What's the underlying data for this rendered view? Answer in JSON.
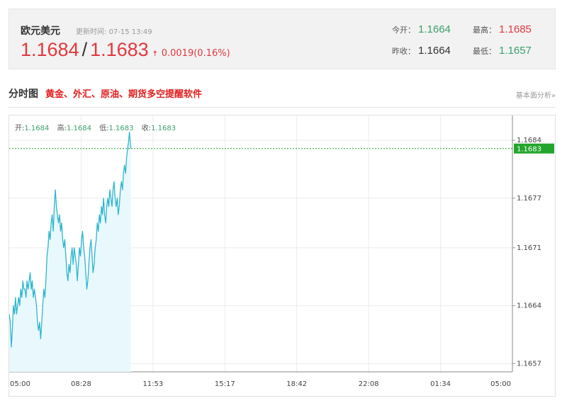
{
  "header": {
    "pair_name": "欧元美元",
    "update_label": "更新时间:",
    "update_time": "07-15 13:49",
    "bid": "1.1684",
    "separator": "/",
    "ask": "1.1683",
    "change": "0.0019(0.16%)",
    "stats": {
      "open_label": "今开：",
      "open_value": "1.1664",
      "high_label": "最高：",
      "high_value": "1.1685",
      "prev_close_label": "昨收：",
      "prev_close_value": "1.1664",
      "low_label": "最低：",
      "low_value": "1.1657"
    }
  },
  "section": {
    "title": "分时图",
    "promo_link": "黄金、外汇、原油、期货多空提醒软件",
    "right_link": "基本面分析»"
  },
  "colors": {
    "up": "#e2383e",
    "down": "#3aa06b",
    "line": "#2cb6cf",
    "fill": "#e9f8fc",
    "current_tag": "#22a52c"
  },
  "chart_data": {
    "type": "area",
    "ohlc": [
      {
        "label": "开:",
        "value": "1.1684"
      },
      {
        "label": "高:",
        "value": "1.1684"
      },
      {
        "label": "低:",
        "value": "1.1683"
      },
      {
        "label": "收:",
        "value": "1.1683"
      }
    ],
    "x_ticks": [
      "05:00",
      "08:28",
      "11:53",
      "15:17",
      "18:42",
      "22:08",
      "01:34",
      "05:00"
    ],
    "y_ticks": [
      "1.1684",
      "1.1677",
      "1.1671",
      "1.1664",
      "1.1657"
    ],
    "ylim": [
      1.1656,
      1.1687
    ],
    "current_price": "1.1683",
    "session_minutes": 1440,
    "series": [
      {
        "values": [
          [
            0,
            1.1663
          ],
          [
            3,
            1.1662
          ],
          [
            6,
            1.1659
          ],
          [
            9,
            1.1661
          ],
          [
            12,
            1.1664
          ],
          [
            15,
            1.1663
          ],
          [
            18,
            1.1665
          ],
          [
            21,
            1.1663
          ],
          [
            24,
            1.1664
          ],
          [
            27,
            1.1665
          ],
          [
            30,
            1.1664
          ],
          [
            33,
            1.1666
          ],
          [
            36,
            1.1665
          ],
          [
            39,
            1.1667
          ],
          [
            42,
            1.1666
          ],
          [
            45,
            1.1666
          ],
          [
            48,
            1.1665
          ],
          [
            51,
            1.1667
          ],
          [
            54,
            1.1666
          ],
          [
            57,
            1.1667
          ],
          [
            60,
            1.1668
          ],
          [
            63,
            1.1666
          ],
          [
            66,
            1.1667
          ],
          [
            69,
            1.1665
          ],
          [
            72,
            1.1666
          ],
          [
            75,
            1.1665
          ],
          [
            78,
            1.1664
          ],
          [
            81,
            1.1662
          ],
          [
            84,
            1.1661
          ],
          [
            87,
            1.1662
          ],
          [
            90,
            1.166
          ],
          [
            93,
            1.1662
          ],
          [
            96,
            1.1664
          ],
          [
            99,
            1.1666
          ],
          [
            102,
            1.1665
          ],
          [
            105,
            1.1667
          ],
          [
            108,
            1.167
          ],
          [
            111,
            1.1671
          ],
          [
            114,
            1.1673
          ],
          [
            117,
            1.1672
          ],
          [
            120,
            1.1674
          ],
          [
            123,
            1.1675
          ],
          [
            126,
            1.1673
          ],
          [
            129,
            1.1676
          ],
          [
            132,
            1.1678
          ],
          [
            135,
            1.1676
          ],
          [
            138,
            1.1675
          ],
          [
            141,
            1.1674
          ],
          [
            144,
            1.1675
          ],
          [
            147,
            1.1673
          ],
          [
            150,
            1.1674
          ],
          [
            153,
            1.1672
          ],
          [
            156,
            1.1671
          ],
          [
            159,
            1.1672
          ],
          [
            162,
            1.167
          ],
          [
            165,
            1.1668
          ],
          [
            168,
            1.1667
          ],
          [
            171,
            1.1669
          ],
          [
            174,
            1.1668
          ],
          [
            177,
            1.167
          ],
          [
            180,
            1.1671
          ],
          [
            183,
            1.1669
          ],
          [
            186,
            1.1671
          ],
          [
            189,
            1.167
          ],
          [
            192,
            1.1669
          ],
          [
            195,
            1.1667
          ],
          [
            198,
            1.1669
          ],
          [
            201,
            1.1671
          ],
          [
            204,
            1.167
          ],
          [
            207,
            1.1672
          ],
          [
            210,
            1.1673
          ],
          [
            213,
            1.1671
          ],
          [
            216,
            1.167
          ],
          [
            219,
            1.1668
          ],
          [
            222,
            1.1666
          ],
          [
            225,
            1.1667
          ],
          [
            228,
            1.1669
          ],
          [
            231,
            1.1671
          ],
          [
            234,
            1.1672
          ],
          [
            237,
            1.167
          ],
          [
            240,
            1.1668
          ],
          [
            243,
            1.1669
          ],
          [
            246,
            1.1671
          ],
          [
            249,
            1.1672
          ],
          [
            252,
            1.1674
          ],
          [
            255,
            1.1673
          ],
          [
            258,
            1.1675
          ],
          [
            261,
            1.1674
          ],
          [
            264,
            1.1676
          ],
          [
            267,
            1.1675
          ],
          [
            270,
            1.1677
          ],
          [
            273,
            1.1675
          ],
          [
            276,
            1.1674
          ],
          [
            279,
            1.1676
          ],
          [
            282,
            1.1677
          ],
          [
            285,
            1.1676
          ],
          [
            288,
            1.1678
          ],
          [
            291,
            1.1677
          ],
          [
            294,
            1.1676
          ],
          [
            297,
            1.1678
          ],
          [
            300,
            1.1679
          ],
          [
            303,
            1.1677
          ],
          [
            306,
            1.1676
          ],
          [
            309,
            1.1677
          ],
          [
            312,
            1.1675
          ],
          [
            315,
            1.1676
          ],
          [
            318,
            1.1678
          ],
          [
            321,
            1.1679
          ],
          [
            324,
            1.1678
          ],
          [
            327,
            1.168
          ],
          [
            330,
            1.1681
          ],
          [
            333,
            1.168
          ],
          [
            336,
            1.1682
          ],
          [
            339,
            1.1683
          ],
          [
            342,
            1.1684
          ],
          [
            344,
            1.1685
          ],
          [
            346,
            1.1684
          ],
          [
            348,
            1.1683
          ]
        ]
      }
    ]
  }
}
